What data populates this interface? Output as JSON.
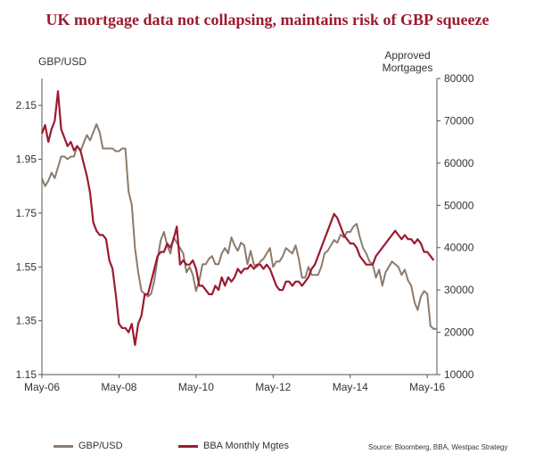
{
  "title": "UK mortgage data not collapsing, maintains risk of GBP squeeze",
  "chart_data": {
    "type": "line",
    "title": "UK mortgage data not collapsing, maintains risk of GBP squeeze",
    "y_left_label": "GBP/USD",
    "y_right_label": [
      "Approved",
      "Mortgages"
    ],
    "y_left_lim": [
      1.15,
      2.25
    ],
    "y_right_lim": [
      10000,
      80000
    ],
    "y_left_ticks": [
      "2.15",
      "1.95",
      "1.75",
      "1.55",
      "1.35",
      "1.15"
    ],
    "y_right_ticks": [
      "80000",
      "70000",
      "60000",
      "50000",
      "40000",
      "30000",
      "20000",
      "10000"
    ],
    "x_ticks": [
      "May-06",
      "May-08",
      "May-10",
      "May-12",
      "May-14",
      "May-16"
    ],
    "series": [
      {
        "name": "GBP/USD",
        "axis": "left",
        "color": "#8c7b6c",
        "points": [
          [
            "2006-05",
            1.88
          ],
          [
            "2006-06",
            1.85
          ],
          [
            "2006-07",
            1.87
          ],
          [
            "2006-08",
            1.9
          ],
          [
            "2006-09",
            1.88
          ],
          [
            "2006-10",
            1.92
          ],
          [
            "2006-11",
            1.96
          ],
          [
            "2006-12",
            1.96
          ],
          [
            "2007-01",
            1.95
          ],
          [
            "2007-02",
            1.96
          ],
          [
            "2007-03",
            1.96
          ],
          [
            "2007-04",
            2.0
          ],
          [
            "2007-05",
            1.98
          ],
          [
            "2007-06",
            2.01
          ],
          [
            "2007-07",
            2.04
          ],
          [
            "2007-08",
            2.02
          ],
          [
            "2007-09",
            2.05
          ],
          [
            "2007-10",
            2.08
          ],
          [
            "2007-11",
            2.05
          ],
          [
            "2007-12",
            1.99
          ],
          [
            "2008-01",
            1.99
          ],
          [
            "2008-02",
            1.99
          ],
          [
            "2008-03",
            1.99
          ],
          [
            "2008-04",
            1.98
          ],
          [
            "2008-05",
            1.98
          ],
          [
            "2008-06",
            1.99
          ],
          [
            "2008-07",
            1.99
          ],
          [
            "2008-08",
            1.83
          ],
          [
            "2008-09",
            1.78
          ],
          [
            "2008-10",
            1.62
          ],
          [
            "2008-11",
            1.53
          ],
          [
            "2008-12",
            1.46
          ],
          [
            "2009-01",
            1.45
          ],
          [
            "2009-02",
            1.44
          ],
          [
            "2009-03",
            1.45
          ],
          [
            "2009-04",
            1.5
          ],
          [
            "2009-05",
            1.58
          ],
          [
            "2009-06",
            1.65
          ],
          [
            "2009-07",
            1.68
          ],
          [
            "2009-08",
            1.63
          ],
          [
            "2009-09",
            1.6
          ],
          [
            "2009-10",
            1.66
          ],
          [
            "2009-11",
            1.64
          ],
          [
            "2009-12",
            1.62
          ],
          [
            "2010-01",
            1.6
          ],
          [
            "2010-02",
            1.53
          ],
          [
            "2010-03",
            1.55
          ],
          [
            "2010-04",
            1.52
          ],
          [
            "2010-05",
            1.46
          ],
          [
            "2010-06",
            1.5
          ],
          [
            "2010-07",
            1.56
          ],
          [
            "2010-08",
            1.56
          ],
          [
            "2010-09",
            1.58
          ],
          [
            "2010-10",
            1.59
          ],
          [
            "2010-11",
            1.56
          ],
          [
            "2010-12",
            1.56
          ],
          [
            "2011-01",
            1.6
          ],
          [
            "2011-02",
            1.62
          ],
          [
            "2011-03",
            1.6
          ],
          [
            "2011-04",
            1.66
          ],
          [
            "2011-05",
            1.63
          ],
          [
            "2011-06",
            1.61
          ],
          [
            "2011-07",
            1.64
          ],
          [
            "2011-08",
            1.63
          ],
          [
            "2011-09",
            1.56
          ],
          [
            "2011-10",
            1.61
          ],
          [
            "2011-11",
            1.56
          ],
          [
            "2011-12",
            1.55
          ],
          [
            "2012-01",
            1.57
          ],
          [
            "2012-02",
            1.58
          ],
          [
            "2012-03",
            1.6
          ],
          [
            "2012-04",
            1.62
          ],
          [
            "2012-05",
            1.55
          ],
          [
            "2012-06",
            1.57
          ],
          [
            "2012-07",
            1.57
          ],
          [
            "2012-08",
            1.59
          ],
          [
            "2012-09",
            1.62
          ],
          [
            "2012-10",
            1.61
          ],
          [
            "2012-11",
            1.6
          ],
          [
            "2012-12",
            1.63
          ],
          [
            "2013-01",
            1.58
          ],
          [
            "2013-02",
            1.51
          ],
          [
            "2013-03",
            1.51
          ],
          [
            "2013-04",
            1.55
          ],
          [
            "2013-05",
            1.52
          ],
          [
            "2013-06",
            1.52
          ],
          [
            "2013-07",
            1.52
          ],
          [
            "2013-08",
            1.55
          ],
          [
            "2013-09",
            1.6
          ],
          [
            "2013-10",
            1.61
          ],
          [
            "2013-11",
            1.63
          ],
          [
            "2013-12",
            1.65
          ],
          [
            "2014-01",
            1.64
          ],
          [
            "2014-02",
            1.67
          ],
          [
            "2014-03",
            1.66
          ],
          [
            "2014-04",
            1.68
          ],
          [
            "2014-05",
            1.68
          ],
          [
            "2014-06",
            1.7
          ],
          [
            "2014-07",
            1.71
          ],
          [
            "2014-08",
            1.66
          ],
          [
            "2014-09",
            1.62
          ],
          [
            "2014-10",
            1.6
          ],
          [
            "2014-11",
            1.57
          ],
          [
            "2014-12",
            1.56
          ],
          [
            "2015-01",
            1.51
          ],
          [
            "2015-02",
            1.54
          ],
          [
            "2015-03",
            1.48
          ],
          [
            "2015-04",
            1.53
          ],
          [
            "2015-05",
            1.55
          ],
          [
            "2015-06",
            1.57
          ],
          [
            "2015-07",
            1.56
          ],
          [
            "2015-08",
            1.55
          ],
          [
            "2015-09",
            1.52
          ],
          [
            "2015-10",
            1.54
          ],
          [
            "2015-11",
            1.5
          ],
          [
            "2015-12",
            1.48
          ],
          [
            "2016-01",
            1.42
          ],
          [
            "2016-02",
            1.39
          ],
          [
            "2016-03",
            1.44
          ],
          [
            "2016-04",
            1.46
          ],
          [
            "2016-05",
            1.45
          ],
          [
            "2016-06",
            1.33
          ],
          [
            "2016-07",
            1.32
          ],
          [
            "2016-08",
            1.32
          ]
        ]
      },
      {
        "name": "BBA Monthly Mgtes",
        "axis": "right",
        "color": "#9b1b30",
        "points": [
          [
            "2006-05",
            67000
          ],
          [
            "2006-06",
            69000
          ],
          [
            "2006-07",
            65000
          ],
          [
            "2006-08",
            68000
          ],
          [
            "2006-09",
            70000
          ],
          [
            "2006-10",
            77000
          ],
          [
            "2006-11",
            68000
          ],
          [
            "2006-12",
            66000
          ],
          [
            "2007-01",
            64000
          ],
          [
            "2007-02",
            65000
          ],
          [
            "2007-03",
            63000
          ],
          [
            "2007-04",
            64000
          ],
          [
            "2007-05",
            63000
          ],
          [
            "2007-06",
            60000
          ],
          [
            "2007-07",
            57000
          ],
          [
            "2007-08",
            53000
          ],
          [
            "2007-09",
            46000
          ],
          [
            "2007-10",
            44000
          ],
          [
            "2007-11",
            43000
          ],
          [
            "2007-12",
            43000
          ],
          [
            "2008-01",
            42000
          ],
          [
            "2008-02",
            37000
          ],
          [
            "2008-03",
            35000
          ],
          [
            "2008-04",
            29000
          ],
          [
            "2008-05",
            22000
          ],
          [
            "2008-06",
            21000
          ],
          [
            "2008-07",
            21000
          ],
          [
            "2008-08",
            20000
          ],
          [
            "2008-09",
            22000
          ],
          [
            "2008-10",
            17000
          ],
          [
            "2008-11",
            22000
          ],
          [
            "2008-12",
            24000
          ],
          [
            "2009-01",
            29000
          ],
          [
            "2009-02",
            29000
          ],
          [
            "2009-03",
            32000
          ],
          [
            "2009-04",
            35000
          ],
          [
            "2009-05",
            38000
          ],
          [
            "2009-06",
            39000
          ],
          [
            "2009-07",
            39000
          ],
          [
            "2009-08",
            41000
          ],
          [
            "2009-09",
            40000
          ],
          [
            "2009-10",
            42000
          ],
          [
            "2009-11",
            45000
          ],
          [
            "2009-12",
            36000
          ],
          [
            "2010-01",
            37000
          ],
          [
            "2010-02",
            36000
          ],
          [
            "2010-03",
            36000
          ],
          [
            "2010-04",
            37000
          ],
          [
            "2010-05",
            35000
          ],
          [
            "2010-06",
            31000
          ],
          [
            "2010-07",
            31000
          ],
          [
            "2010-08",
            30000
          ],
          [
            "2010-09",
            29000
          ],
          [
            "2010-10",
            29000
          ],
          [
            "2010-11",
            31000
          ],
          [
            "2010-12",
            30000
          ],
          [
            "2011-01",
            33000
          ],
          [
            "2011-02",
            31000
          ],
          [
            "2011-03",
            33000
          ],
          [
            "2011-04",
            32000
          ],
          [
            "2011-05",
            33000
          ],
          [
            "2011-06",
            35000
          ],
          [
            "2011-07",
            34000
          ],
          [
            "2011-08",
            35000
          ],
          [
            "2011-09",
            35000
          ],
          [
            "2011-10",
            36000
          ],
          [
            "2011-11",
            35000
          ],
          [
            "2011-12",
            36000
          ],
          [
            "2012-01",
            36000
          ],
          [
            "2012-02",
            35000
          ],
          [
            "2012-03",
            36000
          ],
          [
            "2012-04",
            35000
          ],
          [
            "2012-05",
            33000
          ],
          [
            "2012-06",
            31000
          ],
          [
            "2012-07",
            30000
          ],
          [
            "2012-08",
            30000
          ],
          [
            "2012-09",
            32000
          ],
          [
            "2012-10",
            32000
          ],
          [
            "2012-11",
            31000
          ],
          [
            "2012-12",
            32000
          ],
          [
            "2013-01",
            32000
          ],
          [
            "2013-02",
            31000
          ],
          [
            "2013-03",
            32000
          ],
          [
            "2013-04",
            33000
          ],
          [
            "2013-05",
            35000
          ],
          [
            "2013-06",
            36000
          ],
          [
            "2013-07",
            38000
          ],
          [
            "2013-08",
            40000
          ],
          [
            "2013-09",
            42000
          ],
          [
            "2013-10",
            44000
          ],
          [
            "2013-11",
            46000
          ],
          [
            "2013-12",
            48000
          ],
          [
            "2014-01",
            47000
          ],
          [
            "2014-02",
            45000
          ],
          [
            "2014-03",
            43000
          ],
          [
            "2014-04",
            42000
          ],
          [
            "2014-05",
            41000
          ],
          [
            "2014-06",
            41000
          ],
          [
            "2014-07",
            40000
          ],
          [
            "2014-08",
            38000
          ],
          [
            "2014-09",
            37000
          ],
          [
            "2014-10",
            36000
          ],
          [
            "2014-11",
            36000
          ],
          [
            "2014-12",
            36000
          ],
          [
            "2015-01",
            38000
          ],
          [
            "2015-02",
            39000
          ],
          [
            "2015-03",
            40000
          ],
          [
            "2015-04",
            41000
          ],
          [
            "2015-05",
            42000
          ],
          [
            "2015-06",
            43000
          ],
          [
            "2015-07",
            44000
          ],
          [
            "2015-08",
            43000
          ],
          [
            "2015-09",
            42000
          ],
          [
            "2015-10",
            43000
          ],
          [
            "2015-11",
            42000
          ],
          [
            "2015-12",
            42000
          ],
          [
            "2016-01",
            41000
          ],
          [
            "2016-02",
            42000
          ],
          [
            "2016-03",
            41000
          ],
          [
            "2016-04",
            39000
          ],
          [
            "2016-05",
            39000
          ],
          [
            "2016-06",
            38000
          ],
          [
            "2016-07",
            37000
          ]
        ]
      }
    ],
    "legend_position": "bottom",
    "grid": false
  },
  "legend": [
    {
      "label": "GBP/USD",
      "color": "#8c7b6c"
    },
    {
      "label": "BBA Monthly Mgtes",
      "color": "#9b1b30"
    }
  ],
  "source": "Source: Bloomberg, BBA, Westpac Strategy"
}
